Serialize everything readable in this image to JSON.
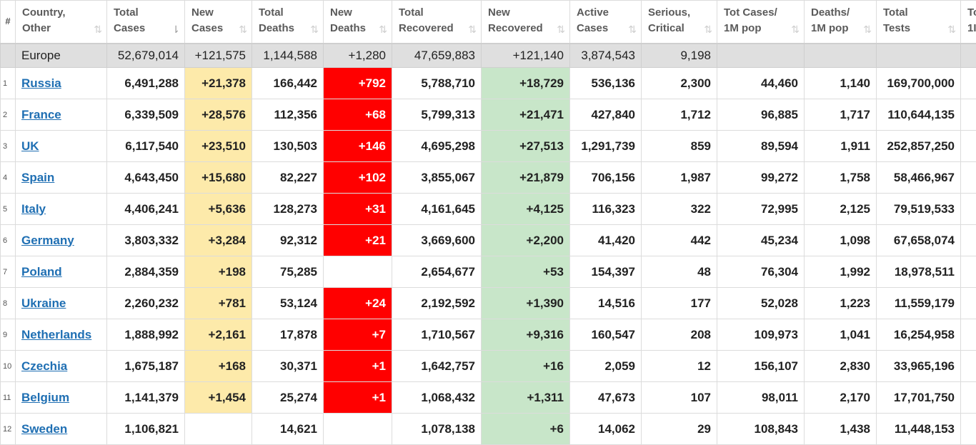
{
  "headers": [
    {
      "l1": "#",
      "l2": ""
    },
    {
      "l1": "Country,",
      "l2": "Other"
    },
    {
      "l1": "Total",
      "l2": "Cases"
    },
    {
      "l1": "New",
      "l2": "Cases"
    },
    {
      "l1": "Total",
      "l2": "Deaths"
    },
    {
      "l1": "New",
      "l2": "Deaths"
    },
    {
      "l1": "Total",
      "l2": "Recovered"
    },
    {
      "l1": "New",
      "l2": "Recovered"
    },
    {
      "l1": "Active",
      "l2": "Cases"
    },
    {
      "l1": "Serious,",
      "l2": "Critical"
    },
    {
      "l1": "Tot Cases/",
      "l2": "1M pop"
    },
    {
      "l1": "Deaths/",
      "l2": "1M pop"
    },
    {
      "l1": "Total",
      "l2": "Tests"
    },
    {
      "l1": "To",
      "l2": "1I"
    }
  ],
  "sort_icon": "⇅",
  "sort_active_icon": "⇂",
  "total_row": {
    "name": "Europe",
    "total_cases": "52,679,014",
    "new_cases": "+121,575",
    "total_deaths": "1,144,588",
    "new_deaths": "+1,280",
    "total_recovered": "47,659,883",
    "new_recovered": "+121,140",
    "active": "3,874,543",
    "serious": "9,198",
    "cases_per_m": "",
    "deaths_per_m": "",
    "tests": "",
    "extra": ""
  },
  "rows": [
    {
      "idx": "1",
      "country": "Russia",
      "total_cases": "6,491,288",
      "new_cases": "+21,378",
      "total_deaths": "166,442",
      "new_deaths": "+792",
      "total_recovered": "5,788,710",
      "new_recovered": "+18,729",
      "active": "536,136",
      "serious": "2,300",
      "cases_per_m": "44,460",
      "deaths_per_m": "1,140",
      "tests": "169,700,000"
    },
    {
      "idx": "2",
      "country": "France",
      "total_cases": "6,339,509",
      "new_cases": "+28,576",
      "total_deaths": "112,356",
      "new_deaths": "+68",
      "total_recovered": "5,799,313",
      "new_recovered": "+21,471",
      "active": "427,840",
      "serious": "1,712",
      "cases_per_m": "96,885",
      "deaths_per_m": "1,717",
      "tests": "110,644,135"
    },
    {
      "idx": "3",
      "country": "UK",
      "total_cases": "6,117,540",
      "new_cases": "+23,510",
      "total_deaths": "130,503",
      "new_deaths": "+146",
      "total_recovered": "4,695,298",
      "new_recovered": "+27,513",
      "active": "1,291,739",
      "serious": "859",
      "cases_per_m": "89,594",
      "deaths_per_m": "1,911",
      "tests": "252,857,250"
    },
    {
      "idx": "4",
      "country": "Spain",
      "total_cases": "4,643,450",
      "new_cases": "+15,680",
      "total_deaths": "82,227",
      "new_deaths": "+102",
      "total_recovered": "3,855,067",
      "new_recovered": "+21,879",
      "active": "706,156",
      "serious": "1,987",
      "cases_per_m": "99,272",
      "deaths_per_m": "1,758",
      "tests": "58,466,967"
    },
    {
      "idx": "5",
      "country": "Italy",
      "total_cases": "4,406,241",
      "new_cases": "+5,636",
      "total_deaths": "128,273",
      "new_deaths": "+31",
      "total_recovered": "4,161,645",
      "new_recovered": "+4,125",
      "active": "116,323",
      "serious": "322",
      "cases_per_m": "72,995",
      "deaths_per_m": "2,125",
      "tests": "79,519,533"
    },
    {
      "idx": "6",
      "country": "Germany",
      "total_cases": "3,803,332",
      "new_cases": "+3,284",
      "total_deaths": "92,312",
      "new_deaths": "+21",
      "total_recovered": "3,669,600",
      "new_recovered": "+2,200",
      "active": "41,420",
      "serious": "442",
      "cases_per_m": "45,234",
      "deaths_per_m": "1,098",
      "tests": "67,658,074"
    },
    {
      "idx": "7",
      "country": "Poland",
      "total_cases": "2,884,359",
      "new_cases": "+198",
      "total_deaths": "75,285",
      "new_deaths": "",
      "total_recovered": "2,654,677",
      "new_recovered": "+53",
      "active": "154,397",
      "serious": "48",
      "cases_per_m": "76,304",
      "deaths_per_m": "1,992",
      "tests": "18,978,511"
    },
    {
      "idx": "8",
      "country": "Ukraine",
      "total_cases": "2,260,232",
      "new_cases": "+781",
      "total_deaths": "53,124",
      "new_deaths": "+24",
      "total_recovered": "2,192,592",
      "new_recovered": "+1,390",
      "active": "14,516",
      "serious": "177",
      "cases_per_m": "52,028",
      "deaths_per_m": "1,223",
      "tests": "11,559,179"
    },
    {
      "idx": "9",
      "country": "Netherlands",
      "total_cases": "1,888,992",
      "new_cases": "+2,161",
      "total_deaths": "17,878",
      "new_deaths": "+7",
      "total_recovered": "1,710,567",
      "new_recovered": "+9,316",
      "active": "160,547",
      "serious": "208",
      "cases_per_m": "109,973",
      "deaths_per_m": "1,041",
      "tests": "16,254,958"
    },
    {
      "idx": "10",
      "country": "Czechia",
      "total_cases": "1,675,187",
      "new_cases": "+168",
      "total_deaths": "30,371",
      "new_deaths": "+1",
      "total_recovered": "1,642,757",
      "new_recovered": "+16",
      "active": "2,059",
      "serious": "12",
      "cases_per_m": "156,107",
      "deaths_per_m": "2,830",
      "tests": "33,965,196"
    },
    {
      "idx": "11",
      "country": "Belgium",
      "total_cases": "1,141,379",
      "new_cases": "+1,454",
      "total_deaths": "25,274",
      "new_deaths": "+1",
      "total_recovered": "1,068,432",
      "new_recovered": "+1,311",
      "active": "47,673",
      "serious": "107",
      "cases_per_m": "98,011",
      "deaths_per_m": "2,170",
      "tests": "17,701,750"
    },
    {
      "idx": "12",
      "country": "Sweden",
      "total_cases": "1,106,821",
      "new_cases": "",
      "total_deaths": "14,621",
      "new_deaths": "",
      "total_recovered": "1,078,138",
      "new_recovered": "+6",
      "active": "14,062",
      "serious": "29",
      "cases_per_m": "108,843",
      "deaths_per_m": "1,438",
      "tests": "11,448,153"
    }
  ],
  "colors": {
    "new_cases_bg": "#fdeaaa",
    "new_deaths_bg": "#ff0000",
    "new_recovered_bg": "#c8e6c9",
    "total_row_bg": "#dfdfdf",
    "link": "#1f6fb3"
  }
}
